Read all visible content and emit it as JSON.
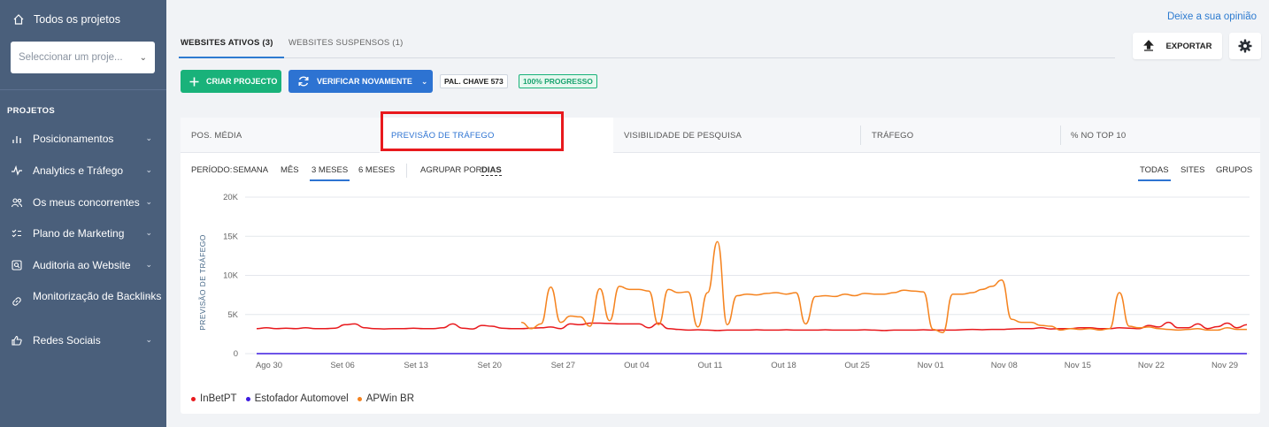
{
  "sidebar": {
    "top_link": "Todos os projetos",
    "project_select_placeholder": "Seleccionar um proje...",
    "section_title": "PROJETOS",
    "items": [
      {
        "label": "Posicionamentos"
      },
      {
        "label": "Analytics e Tráfego"
      },
      {
        "label": "Os meus concorrentes"
      },
      {
        "label": "Plano de Marketing"
      },
      {
        "label": "Auditoria ao Website"
      },
      {
        "label": "Monitorização de Backlinks"
      },
      {
        "label": "Redes Sociais"
      }
    ]
  },
  "header": {
    "feedback_link": "Deixe a sua opinião",
    "tabs": [
      {
        "label": "WEBSITES ATIVOS (3)"
      },
      {
        "label": "WEBSITES SUSPENSOS (1)"
      }
    ],
    "export_label": "EXPORTAR"
  },
  "toolbar": {
    "create_label": "CRIAR PROJECTO",
    "verify_label": "VERIFICAR NOVAMENTE",
    "keywords_badge": "PAL. CHAVE 573",
    "progress_badge": "100% PROGRESSO"
  },
  "metrics": [
    {
      "label": "POS. MÉDIA"
    },
    {
      "label": "PREVISÃO DE TRÁFEGO"
    },
    {
      "label": "VISIBILIDADE DE PESQUISA"
    },
    {
      "label": "TRÁFEGO"
    },
    {
      "label": "% NO TOP 10"
    }
  ],
  "controls": {
    "period_label": "PERÍODO:",
    "periods": [
      "SEMANA",
      "MÊS",
      "3 MESES",
      "6 MESES"
    ],
    "group_label": "AGRUPAR POR:",
    "group_value": "DIAS",
    "filters": [
      "TODAS",
      "SITES",
      "GRUPOS"
    ]
  },
  "colors": {
    "sidebar_bg": "#4a5f7b",
    "accent": "#2d73d2",
    "green": "#19b27a",
    "highlight": "#e8191d"
  },
  "chart_data": {
    "type": "line",
    "ylabel": "PREVISÃO DE TRÁFEGO",
    "ylim": [
      0,
      20000
    ],
    "yticks": [
      "20K",
      "15K",
      "10K",
      "5K",
      "0"
    ],
    "x_tick_labels": [
      "Ago 30",
      "Set 06",
      "Set 13",
      "Set 20",
      "Set 27",
      "Out 04",
      "Out 11",
      "Out 18",
      "Out 25",
      "Nov 01",
      "Nov 08",
      "Nov 15",
      "Nov 22",
      "Nov 29"
    ],
    "grid": true,
    "legend_position": "bottom-left",
    "series": [
      {
        "name": "InBetPT",
        "color": "#e8191d",
        "values": [
          3200,
          3300,
          3200,
          3250,
          3200,
          3300,
          3200,
          3200,
          3250,
          3700,
          3800,
          3300,
          3200,
          3150,
          3200,
          3200,
          3250,
          3200,
          3200,
          3300,
          3800,
          3250,
          3150,
          3600,
          3500,
          3250,
          3200,
          3200,
          3250,
          3300,
          3400,
          3200,
          3800,
          3700,
          3900,
          3900,
          3850,
          3800,
          3800,
          3800,
          3300,
          3900,
          3200,
          3100,
          3000,
          3050,
          3000,
          2950,
          3000,
          3000,
          3000,
          3050,
          3000,
          3000,
          3050,
          3000,
          3000,
          3000,
          3050,
          3000,
          3000,
          3000,
          3050,
          3000,
          2950,
          3000,
          3000,
          3000,
          3050,
          3000,
          3000,
          3000,
          3050,
          3100,
          3050,
          3100,
          3100,
          3150,
          3200,
          3200,
          3300,
          3150,
          3200,
          3200,
          3300,
          3300,
          3200,
          3200,
          3300,
          3250,
          3200,
          3600,
          3400,
          4000,
          3300,
          3300,
          3800,
          3200,
          3450,
          3900,
          3300,
          3700
        ]
      },
      {
        "name": "Estofador Automovel",
        "color": "#3d1be0",
        "values": [
          0,
          0,
          0,
          0,
          0,
          0,
          0,
          0,
          0,
          0,
          0,
          0,
          0,
          0,
          0,
          0,
          0,
          0,
          0,
          0,
          0,
          0,
          0,
          0,
          0,
          0,
          0,
          0,
          0,
          0,
          0,
          0,
          0,
          0,
          0,
          0,
          0,
          0,
          0,
          0,
          0,
          0,
          0,
          0,
          0,
          0,
          0,
          0,
          0,
          0,
          0,
          0,
          0,
          0,
          0,
          0,
          0,
          0,
          0,
          0,
          0,
          0,
          0,
          0,
          0,
          0,
          0,
          0,
          0,
          0,
          0,
          0,
          0,
          0,
          0,
          0,
          0,
          0,
          0,
          0,
          0,
          0,
          0,
          0,
          0,
          0,
          0,
          0,
          0,
          0,
          0,
          0,
          0,
          0,
          0,
          0,
          0,
          0,
          0,
          0,
          0,
          0
        ]
      },
      {
        "name": "APWin BR",
        "color": "#f5831f",
        "values": [
          null,
          null,
          null,
          null,
          null,
          null,
          null,
          null,
          null,
          null,
          null,
          null,
          null,
          null,
          null,
          null,
          null,
          null,
          null,
          null,
          null,
          null,
          null,
          null,
          null,
          null,
          null,
          4000,
          3200,
          3800,
          8500,
          4000,
          4800,
          4700,
          3500,
          8300,
          4200,
          8600,
          8200,
          8200,
          8000,
          3700,
          8200,
          7800,
          7900,
          3400,
          7800,
          14300,
          3700,
          7400,
          7600,
          7500,
          7700,
          7800,
          7600,
          7800,
          3800,
          7300,
          7400,
          7300,
          7600,
          7400,
          7700,
          7600,
          7600,
          7800,
          8100,
          8000,
          7900,
          3100,
          2700,
          7600,
          7600,
          7800,
          8200,
          8600,
          9400,
          4400,
          4000,
          4000,
          3600,
          3500,
          3000,
          3200,
          3100,
          3200,
          3000,
          3200,
          7800,
          3500,
          3300,
          3400,
          3200,
          3100,
          3000,
          3100,
          3200,
          3000,
          3000,
          3300,
          3100,
          3100
        ]
      }
    ]
  }
}
